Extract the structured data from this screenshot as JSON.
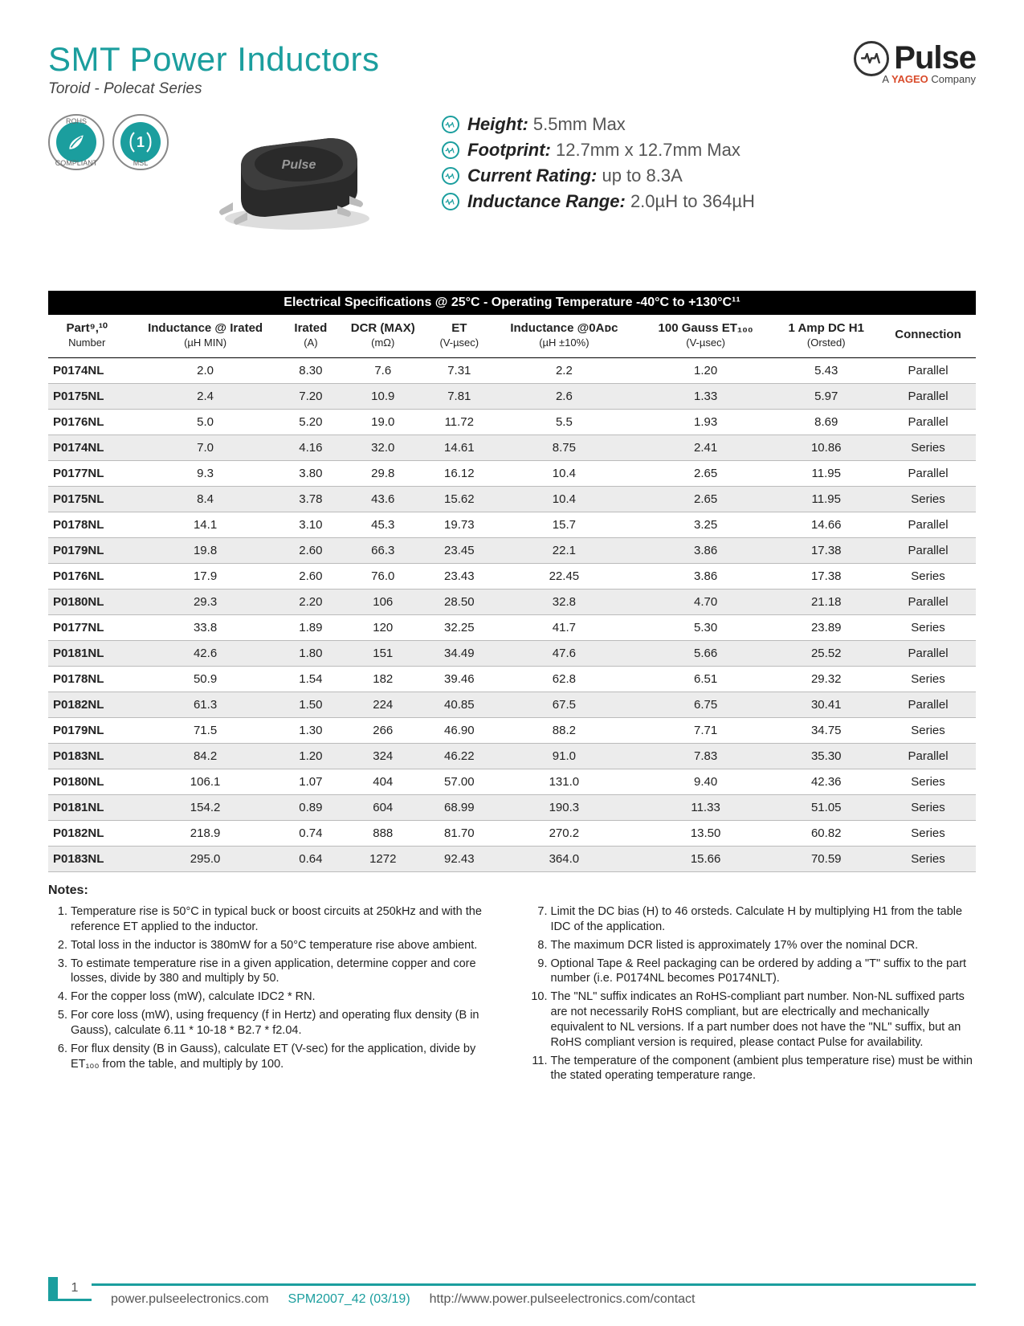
{
  "header": {
    "title": "SMT Power Inductors",
    "subtitle": "Toroid - Polecat Series",
    "logo_name": "Pulse",
    "logo_tagline_prefix": "A ",
    "logo_tagline_brand": "YAGEO",
    "logo_tagline_suffix": " Company"
  },
  "badges": {
    "rohs_top": "ROHS",
    "rohs_bottom": "COMPLIANT",
    "msl_value": "1",
    "msl_label": "MSL"
  },
  "key_specs": [
    {
      "label": "Height:",
      "value": "5.5mm Max"
    },
    {
      "label": "Footprint:",
      "value": "12.7mm x 12.7mm Max"
    },
    {
      "label": "Current Rating:",
      "value": "up to 8.3A"
    },
    {
      "label": "Inductance Range:",
      "value": "2.0µH to 364µH"
    }
  ],
  "table": {
    "title": "Electrical Specifications @ 25°C - Operating Temperature -40°C to +130°C¹¹",
    "columns": [
      {
        "h": "Part⁹,¹⁰",
        "sub": "Number"
      },
      {
        "h": "Inductance @ Irated",
        "sub": "(µH MIN)"
      },
      {
        "h": "Irated",
        "sub": "(A)"
      },
      {
        "h": "DCR (MAX)",
        "sub": "(mΩ)"
      },
      {
        "h": "ET",
        "sub": "(V-µsec)"
      },
      {
        "h": "Inductance @0Aᴅᴄ",
        "sub": "(µH ±10%)"
      },
      {
        "h": "100 Gauss ET₁₀₀",
        "sub": "(V-µsec)"
      },
      {
        "h": "1 Amp DC H1",
        "sub": "(Orsted)"
      },
      {
        "h": "Connection",
        "sub": ""
      }
    ],
    "rows": [
      [
        "P0174NL",
        "2.0",
        "8.30",
        "7.6",
        "7.31",
        "2.2",
        "1.20",
        "5.43",
        "Parallel"
      ],
      [
        "P0175NL",
        "2.4",
        "7.20",
        "10.9",
        "7.81",
        "2.6",
        "1.33",
        "5.97",
        "Parallel"
      ],
      [
        "P0176NL",
        "5.0",
        "5.20",
        "19.0",
        "11.72",
        "5.5",
        "1.93",
        "8.69",
        "Parallel"
      ],
      [
        "P0174NL",
        "7.0",
        "4.16",
        "32.0",
        "14.61",
        "8.75",
        "2.41",
        "10.86",
        "Series"
      ],
      [
        "P0177NL",
        "9.3",
        "3.80",
        "29.8",
        "16.12",
        "10.4",
        "2.65",
        "11.95",
        "Parallel"
      ],
      [
        "P0175NL",
        "8.4",
        "3.78",
        "43.6",
        "15.62",
        "10.4",
        "2.65",
        "11.95",
        "Series"
      ],
      [
        "P0178NL",
        "14.1",
        "3.10",
        "45.3",
        "19.73",
        "15.7",
        "3.25",
        "14.66",
        "Parallel"
      ],
      [
        "P0179NL",
        "19.8",
        "2.60",
        "66.3",
        "23.45",
        "22.1",
        "3.86",
        "17.38",
        "Parallel"
      ],
      [
        "P0176NL",
        "17.9",
        "2.60",
        "76.0",
        "23.43",
        "22.45",
        "3.86",
        "17.38",
        "Series"
      ],
      [
        "P0180NL",
        "29.3",
        "2.20",
        "106",
        "28.50",
        "32.8",
        "4.70",
        "21.18",
        "Parallel"
      ],
      [
        "P0177NL",
        "33.8",
        "1.89",
        "120",
        "32.25",
        "41.7",
        "5.30",
        "23.89",
        "Series"
      ],
      [
        "P0181NL",
        "42.6",
        "1.80",
        "151",
        "34.49",
        "47.6",
        "5.66",
        "25.52",
        "Parallel"
      ],
      [
        "P0178NL",
        "50.9",
        "1.54",
        "182",
        "39.46",
        "62.8",
        "6.51",
        "29.32",
        "Series"
      ],
      [
        "P0182NL",
        "61.3",
        "1.50",
        "224",
        "40.85",
        "67.5",
        "6.75",
        "30.41",
        "Parallel"
      ],
      [
        "P0179NL",
        "71.5",
        "1.30",
        "266",
        "46.90",
        "88.2",
        "7.71",
        "34.75",
        "Series"
      ],
      [
        "P0183NL",
        "84.2",
        "1.20",
        "324",
        "46.22",
        "91.0",
        "7.83",
        "35.30",
        "Parallel"
      ],
      [
        "P0180NL",
        "106.1",
        "1.07",
        "404",
        "57.00",
        "131.0",
        "9.40",
        "42.36",
        "Series"
      ],
      [
        "P0181NL",
        "154.2",
        "0.89",
        "604",
        "68.99",
        "190.3",
        "11.33",
        "51.05",
        "Series"
      ],
      [
        "P0182NL",
        "218.9",
        "0.74",
        "888",
        "81.70",
        "270.2",
        "13.50",
        "60.82",
        "Series"
      ],
      [
        "P0183NL",
        "295.0",
        "0.64",
        "1272",
        "92.43",
        "364.0",
        "15.66",
        "70.59",
        "Series"
      ]
    ]
  },
  "notes": {
    "heading": "Notes:",
    "items": [
      "Temperature rise is 50°C in typical buck or boost circuits at 250kHz and with the reference ET applied to the inductor.",
      "Total loss in the inductor is 380mW for a 50°C temperature rise above ambient.",
      "To estimate temperature rise in a given application, determine copper and core losses, divide by 380 and multiply by 50.",
      "For the copper loss (mW), calculate IDC2 * RN.",
      "For core loss (mW), using frequency (f in Hertz) and operating flux density (B in Gauss), calculate 6.11 * 10-18 * B2.7 * f2.04.",
      "For flux density (B in Gauss), calculate ET (V-sec) for the application, divide by ET₁₀₀ from the table, and multiply by 100.",
      "Limit the DC bias (H) to 46 orsteds. Calculate H by multiplying H1 from the table IDC of the application.",
      "The maximum DCR listed is approximately 17% over the nominal DCR.",
      "Optional Tape & Reel packaging can be ordered by adding a \"T\" suffix to the part number (i.e. P0174NL becomes P0174NLT).",
      "The \"NL\" suffix indicates an RoHS-compliant part number. Non-NL suffixed parts are not necessarily RoHS compliant, but are electrically and mechanically equivalent to NL versions. If a part number does not have the \"NL\" suffix, but an RoHS compliant version is required, please contact Pulse for availability.",
      "The temperature of the component (ambient plus temperature rise) must be within the stated operating temperature range."
    ]
  },
  "footer": {
    "page": "1",
    "site": "power.pulseelectronics.com",
    "docid": "SPM2007_42 (03/19)",
    "contact": "http://www.power.pulseelectronics.com/contact"
  }
}
